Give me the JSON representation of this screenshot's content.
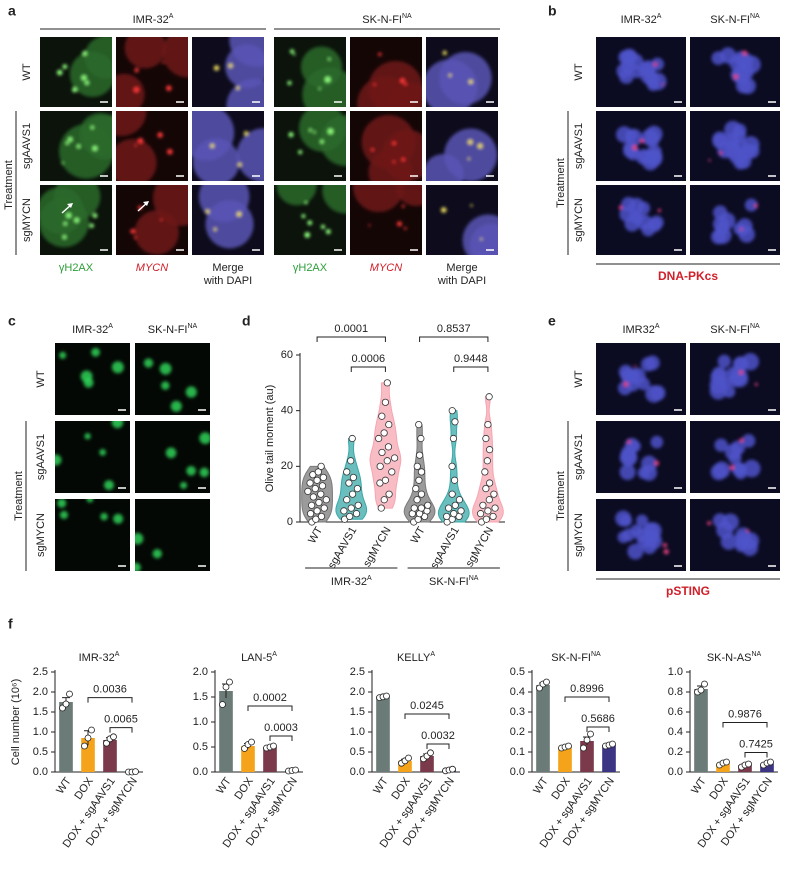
{
  "panels": {
    "a": {
      "letter": "a",
      "groups": [
        {
          "main": "IMR-32",
          "sup": "A"
        },
        {
          "main": "SK-N-FI",
          "sup": "NA"
        }
      ],
      "rows": [
        "WT",
        "sgAAVS1",
        "sgMYCN"
      ],
      "row_group": "Treatment",
      "channels": [
        [
          "γH2AX"
        ],
        [
          "MYCN"
        ],
        [
          "Merge",
          "with DAPI"
        ]
      ]
    },
    "b": {
      "letter": "b",
      "columns": [
        {
          "main": "IMR-32",
          "sup": "A"
        },
        {
          "main": "SK-N-FI",
          "sup": "NA"
        }
      ],
      "rows": [
        "WT",
        "sgAAVS1",
        "sgMYCN"
      ],
      "row_group": "Treatment",
      "stain": "DNA-PKcs"
    },
    "c": {
      "letter": "c",
      "columns": [
        {
          "main": "IMR-32",
          "sup": "A"
        },
        {
          "main": "SK-N-FI",
          "sup": "NA"
        }
      ],
      "rows": [
        "WT",
        "sgAAVS1",
        "sgMYCN"
      ],
      "row_group": "Treatment"
    },
    "d": {
      "letter": "d"
    },
    "e": {
      "letter": "e",
      "columns": [
        {
          "main": "IMR32",
          "sup": "A"
        },
        {
          "main": "SK-N-FI",
          "sup": "NA"
        }
      ],
      "rows": [
        "WT",
        "sgAAVS1",
        "sgMYCN"
      ],
      "row_group": "Treatment",
      "stain": "pSTING"
    },
    "f": {
      "letter": "f"
    }
  },
  "chart_data": [
    {
      "type": "violin",
      "ylabel": "Olive tail moment (au)",
      "ylim": [
        0,
        60
      ],
      "yticks": [
        0,
        20,
        40,
        60
      ],
      "groups": [
        {
          "label": {
            "main": "IMR-32",
            "sup": "A"
          },
          "categories": [
            "WT",
            "sgAAVS1",
            "sgMYCN"
          ],
          "colors": [
            "#7a7a7a",
            "#3aa8a8",
            "#f6a5b0"
          ],
          "points": [
            [
              0,
              1,
              2,
              3,
              4,
              5,
              6,
              7,
              8,
              9,
              10,
              11,
              12,
              13,
              14,
              15,
              16,
              17,
              18,
              20
            ],
            [
              1,
              2,
              3,
              4,
              5,
              6,
              8,
              10,
              12,
              14,
              16,
              18,
              22,
              30
            ],
            [
              5,
              8,
              10,
              14,
              15,
              18,
              20,
              22,
              23,
              25,
              27,
              30,
              32,
              35,
              38,
              43,
              50
            ]
          ],
          "comparisons": [
            {
              "groups": [
                "WT",
                "sgMYCN"
              ],
              "p": 0.0001
            },
            {
              "groups": [
                "sgAAVS1",
                "sgMYCN"
              ],
              "p": 0.0006
            }
          ]
        },
        {
          "label": {
            "main": "SK-N-FI",
            "sup": "NA"
          },
          "categories": [
            "WT",
            "sgAAVS1",
            "sgMYCN"
          ],
          "colors": [
            "#7a7a7a",
            "#3aa8a8",
            "#f6a5b0"
          ],
          "points": [
            [
              0,
              1,
              2,
              3,
              3,
              4,
              5,
              5,
              6,
              8,
              10,
              12,
              15,
              18,
              20,
              24,
              30,
              35
            ],
            [
              0,
              1,
              2,
              2,
              3,
              4,
              5,
              6,
              8,
              10,
              15,
              20,
              30,
              36,
              40
            ],
            [
              0,
              1,
              2,
              3,
              4,
              5,
              6,
              8,
              10,
              12,
              14,
              18,
              22,
              26,
              30,
              35,
              45
            ]
          ],
          "comparisons": [
            {
              "groups": [
                "WT",
                "sgMYCN"
              ],
              "p": 0.8537
            },
            {
              "groups": [
                "sgAAVS1",
                "sgMYCN"
              ],
              "p": 0.9448
            }
          ]
        }
      ]
    },
    {
      "type": "bar",
      "title": {
        "main": "IMR-32",
        "sup": "A"
      },
      "ylabel": "Cell number (10⁶)",
      "categories": [
        "WT",
        "DOX",
        "DOX + sgAAVS1",
        "DOX + sgMYCN"
      ],
      "colors": [
        "#6b7b77",
        "#f5a31a",
        "#7b3a4c",
        "#2d2a6e"
      ],
      "values": [
        1.75,
        0.85,
        0.8,
        0.01
      ],
      "errors": [
        0.11,
        0.18,
        0.06,
        0.003
      ],
      "points": [
        [
          1.6,
          1.7,
          1.95
        ],
        [
          0.65,
          0.85,
          1.05
        ],
        [
          0.72,
          0.83,
          0.88
        ],
        [
          0,
          0,
          0.01
        ]
      ],
      "ylim": [
        0,
        2.5
      ],
      "yticks": [
        {
          "value": 0,
          "label": "0.0"
        },
        0.5,
        {
          "value": 1,
          "label": "1.0"
        },
        1.5,
        {
          "value": 2,
          "label": "2.0"
        },
        2.5
      ],
      "comparisons": [
        {
          "groups": [
            "DOX + sgAAVS1",
            "DOX + sgMYCN"
          ],
          "p": 0.0065
        },
        {
          "groups": [
            "DOX",
            "DOX + sgMYCN"
          ],
          "p": 0.0036
        }
      ]
    },
    {
      "type": "bar",
      "title": {
        "main": "LAN-5",
        "sup": "A"
      },
      "categories": [
        "WT",
        "DOX",
        "DOX + sgAAVS1",
        "DOX + sgMYCN"
      ],
      "colors": [
        "#6b7b77",
        "#f5a31a",
        "#7b3a4c",
        "#2d2a6e"
      ],
      "values": [
        1.62,
        0.52,
        0.5,
        0.03
      ],
      "errors": [
        0.14,
        0.05,
        0.02,
        0.01
      ],
      "points": [
        [
          1.35,
          1.7,
          1.8
        ],
        [
          0.47,
          0.55,
          0.6
        ],
        [
          0.48,
          0.5,
          0.52
        ],
        [
          0.02,
          0.03,
          0.04
        ]
      ],
      "ylim": [
        0,
        2.0
      ],
      "yticks": [
        {
          "value": 0,
          "label": "0.0"
        },
        0.5,
        {
          "value": 1,
          "label": "1.0"
        },
        1.5,
        {
          "value": 2,
          "label": "2.0"
        }
      ],
      "comparisons": [
        {
          "groups": [
            "DOX + sgAAVS1",
            "DOX + sgMYCN"
          ],
          "p": 0.0003
        },
        {
          "groups": [
            "DOX",
            "DOX + sgMYCN"
          ],
          "p": 0.0002
        }
      ]
    },
    {
      "type": "bar",
      "title": {
        "main": "KELLY",
        "sup": "A"
      },
      "categories": [
        "WT",
        "DOX",
        "DOX + sgAAVS1",
        "DOX + sgMYCN"
      ],
      "colors": [
        "#6b7b77",
        "#f5a31a",
        "#7b3a4c",
        "#2d2a6e"
      ],
      "values": [
        1.88,
        0.28,
        0.4,
        0.05
      ],
      "errors": [
        0.02,
        0.04,
        0.05,
        0.01
      ],
      "points": [
        [
          1.86,
          1.88,
          1.9
        ],
        [
          0.22,
          0.28,
          0.35
        ],
        [
          0.33,
          0.4,
          0.48
        ],
        [
          0.03,
          0.05,
          0.07
        ]
      ],
      "ylim": [
        0,
        2.5
      ],
      "yticks": [
        {
          "value": 0,
          "label": "0.0"
        },
        0.5,
        {
          "value": 1,
          "label": "1.0"
        },
        1.5,
        {
          "value": 2,
          "label": "2.0"
        },
        2.5
      ],
      "comparisons": [
        {
          "groups": [
            "DOX + sgAAVS1",
            "DOX + sgMYCN"
          ],
          "p": 0.0032
        },
        {
          "groups": [
            "DOX",
            "DOX + sgMYCN"
          ],
          "p": 0.0245
        }
      ]
    },
    {
      "type": "bar",
      "title": {
        "main": "SK-N-FI",
        "sup": "NA"
      },
      "categories": [
        "WT",
        "DOX",
        "DOX + sgAAVS1",
        "DOX + sgMYCN"
      ],
      "colors": [
        "#6b7b77",
        "#f5a31a",
        "#7b3a4c",
        "#3b3583"
      ],
      "values": [
        0.435,
        0.125,
        0.155,
        0.135
      ],
      "errors": [
        0.01,
        0.003,
        0.02,
        0.003
      ],
      "points": [
        [
          0.42,
          0.44,
          0.45
        ],
        [
          0.12,
          0.125,
          0.13
        ],
        [
          0.12,
          0.16,
          0.19
        ],
        [
          0.13,
          0.135,
          0.14
        ]
      ],
      "ylim": [
        0,
        0.5
      ],
      "yticks": [
        {
          "value": 0,
          "label": "0.0"
        },
        0.1,
        0.2,
        0.3,
        0.4,
        0.5
      ],
      "comparisons": [
        {
          "groups": [
            "DOX + sgAAVS1",
            "DOX + sgMYCN"
          ],
          "p": 0.5686
        },
        {
          "groups": [
            "DOX",
            "DOX + sgMYCN"
          ],
          "p": 0.8996
        }
      ]
    },
    {
      "type": "bar",
      "title": {
        "main": "SK-N-AS",
        "sup": "NA"
      },
      "categories": [
        "WT",
        "DOX",
        "DOX + sgAAVS1",
        "DOX + sgMYCN"
      ],
      "colors": [
        "#6b7b77",
        "#f5a31a",
        "#7b3a4c",
        "#3b3583"
      ],
      "values": [
        0.83,
        0.085,
        0.07,
        0.085
      ],
      "errors": [
        0.03,
        0.01,
        0.01,
        0.01
      ],
      "points": [
        [
          0.8,
          0.82,
          0.88
        ],
        [
          0.07,
          0.09,
          0.1
        ],
        [
          0.05,
          0.07,
          0.08
        ],
        [
          0.07,
          0.09,
          0.1
        ]
      ],
      "ylim": [
        0,
        1.0
      ],
      "yticks": [
        {
          "value": 0,
          "label": "0.0"
        },
        0.2,
        0.4,
        0.6,
        0.8,
        {
          "value": 1,
          "label": "1.0"
        }
      ],
      "comparisons": [
        {
          "groups": [
            "DOX + sgAAVS1",
            "DOX + sgMYCN"
          ],
          "p": 0.7425
        },
        {
          "groups": [
            "DOX",
            "DOX + sgMYCN"
          ],
          "p": 0.9876
        }
      ]
    }
  ]
}
